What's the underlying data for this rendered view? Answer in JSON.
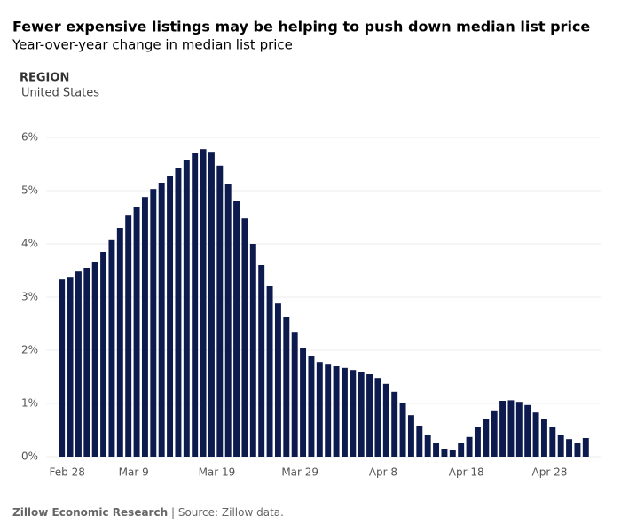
{
  "chart_data": {
    "type": "bar",
    "title": "Fewer expensive listings may be helping to push down median list price",
    "subtitle": "Year-over-year change in median list price",
    "filter_label": "REGION",
    "filter_value": "United States",
    "source_bold": "Zillow Economic Research",
    "source_rest": "| Source: Zillow data.",
    "color": "#0d1a4e",
    "grid": true,
    "categories": [
      "Feb 28",
      null,
      null,
      null,
      null,
      null,
      null,
      null,
      "Mar 9",
      null,
      null,
      null,
      null,
      null,
      null,
      null,
      null,
      null,
      "Mar 19",
      null,
      null,
      null,
      null,
      null,
      null,
      null,
      null,
      null,
      "Mar 29",
      null,
      null,
      null,
      null,
      null,
      null,
      null,
      null,
      null,
      "Apr 8",
      null,
      null,
      null,
      null,
      null,
      null,
      null,
      null,
      null,
      "Apr 18",
      null,
      null,
      null,
      null,
      null,
      null,
      null,
      null,
      null,
      "Apr 28",
      null,
      null,
      null,
      null,
      null
    ],
    "values": [
      3.33,
      3.38,
      3.48,
      3.55,
      3.65,
      3.85,
      4.07,
      4.3,
      4.53,
      4.7,
      4.88,
      5.03,
      5.15,
      5.28,
      5.43,
      5.58,
      5.71,
      5.78,
      5.73,
      5.47,
      5.13,
      4.8,
      4.48,
      4.0,
      3.6,
      3.2,
      2.88,
      2.62,
      2.33,
      2.05,
      1.9,
      1.78,
      1.73,
      1.7,
      1.67,
      1.63,
      1.6,
      1.55,
      1.48,
      1.37,
      1.22,
      1.0,
      0.78,
      0.57,
      0.4,
      0.25,
      0.15,
      0.13,
      0.25,
      0.37,
      0.55,
      0.7,
      0.87,
      1.05,
      1.06,
      1.03,
      0.97,
      0.83,
      0.7,
      0.55,
      0.4,
      0.33,
      0.25,
      0.35
    ],
    "ylim": [
      0,
      6
    ],
    "yticks": [
      {
        "value": 0,
        "label": "0%"
      },
      {
        "value": 1,
        "label": "1%"
      },
      {
        "value": 2,
        "label": "2%"
      },
      {
        "value": 3,
        "label": "3%"
      },
      {
        "value": 4,
        "label": "4%"
      },
      {
        "value": 5,
        "label": "5%"
      },
      {
        "value": 6,
        "label": "6%"
      }
    ]
  }
}
